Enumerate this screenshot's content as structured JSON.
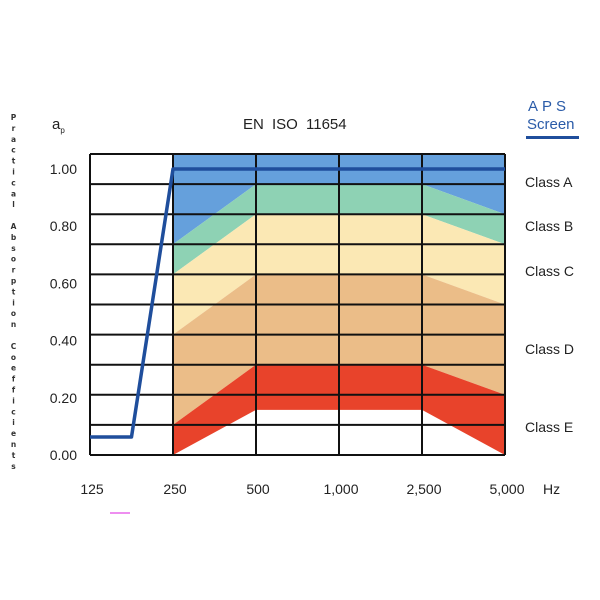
{
  "title": "EN ISO 11654",
  "y_symbol": "a",
  "y_symbol_sub": "p",
  "brand": {
    "line1": "APS",
    "line2": "Screen",
    "color": "#2a5ba8"
  },
  "chart_data": {
    "type": "area",
    "title": "EN ISO 11654",
    "ylabel": "Practical Absorption Coefficients",
    "xunit": "Hz",
    "x_categories": [
      "125",
      "250",
      "500",
      "1,000",
      "2,500",
      "5,000"
    ],
    "y_ticks": [
      "0.00",
      "0.20",
      "0.40",
      "0.60",
      "0.80",
      "1.00"
    ],
    "ylim": [
      0,
      1.0
    ],
    "grid": true,
    "class_bands": {
      "x_index": [
        1,
        2,
        4,
        5
      ],
      "bands": [
        {
          "name": "Class A",
          "upper": [
            1.0,
            1.0,
            1.0,
            1.0
          ],
          "lower": [
            0.7,
            0.9,
            0.9,
            0.8
          ],
          "color": "#65a0dc"
        },
        {
          "name": "Class B",
          "upper": [
            0.7,
            0.9,
            0.9,
            0.8
          ],
          "lower": [
            0.6,
            0.8,
            0.8,
            0.7
          ],
          "color": "#8ed2b4"
        },
        {
          "name": "Class C",
          "upper": [
            0.6,
            0.8,
            0.8,
            0.7
          ],
          "lower": [
            0.4,
            0.6,
            0.6,
            0.5
          ],
          "color": "#fbe8b4"
        },
        {
          "name": "Class D",
          "upper": [
            0.4,
            0.6,
            0.6,
            0.5
          ],
          "lower": [
            0.1,
            0.3,
            0.3,
            0.2
          ],
          "color": "#ebbd88"
        },
        {
          "name": "Class E",
          "upper": [
            0.1,
            0.3,
            0.3,
            0.2
          ],
          "lower": [
            0.0,
            0.15,
            0.15,
            0.0
          ],
          "color": "#e8432b"
        }
      ]
    },
    "series": [
      {
        "x_index": [
          0,
          0.5,
          1,
          5
        ],
        "values": [
          0.06,
          0.06,
          0.95,
          0.95
        ],
        "color": "#1f4e9c"
      }
    ]
  }
}
